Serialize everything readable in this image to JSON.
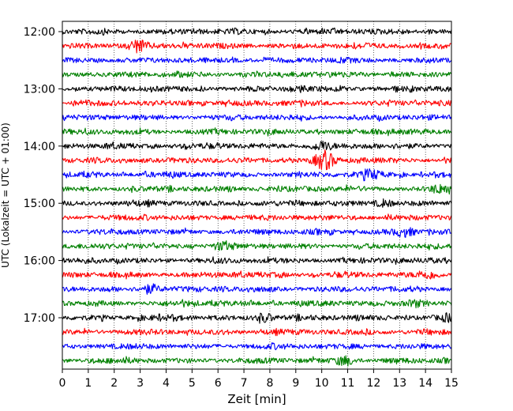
{
  "chart_data": {
    "type": "line",
    "title": "",
    "xlabel": "Zeit  [min]",
    "ylabel": "UTC (Lokalzeit = UTC + 01:00)",
    "xlim": [
      0,
      15
    ],
    "x_ticks": [
      0,
      1,
      2,
      3,
      4,
      5,
      6,
      7,
      8,
      9,
      10,
      11,
      12,
      13,
      14,
      15
    ],
    "y_ticks": [
      "12:00",
      "13:00",
      "14:00",
      "15:00",
      "16:00",
      "17:00"
    ],
    "grid": "vertical dotted",
    "trace_interval_min": 15,
    "colors": [
      "#000000",
      "#ff0000",
      "#0000ff",
      "#008000"
    ],
    "traces": [
      {
        "start": "12:00",
        "color": "#000000",
        "events": []
      },
      {
        "start": "12:15",
        "color": "#ff0000",
        "events": [
          {
            "t": 2.9,
            "amp": 2.2
          }
        ]
      },
      {
        "start": "12:30",
        "color": "#0000ff",
        "events": []
      },
      {
        "start": "12:45",
        "color": "#008000",
        "events": []
      },
      {
        "start": "13:00",
        "color": "#000000",
        "events": []
      },
      {
        "start": "13:15",
        "color": "#ff0000",
        "events": []
      },
      {
        "start": "13:30",
        "color": "#0000ff",
        "events": []
      },
      {
        "start": "13:45",
        "color": "#008000",
        "events": []
      },
      {
        "start": "14:00",
        "color": "#000000",
        "events": [
          {
            "t": 10.0,
            "amp": 1.5
          }
        ]
      },
      {
        "start": "14:15",
        "color": "#ff0000",
        "events": [
          {
            "t": 10.1,
            "amp": 3.2
          }
        ]
      },
      {
        "start": "14:30",
        "color": "#0000ff",
        "events": [
          {
            "t": 11.9,
            "amp": 1.3
          }
        ]
      },
      {
        "start": "14:45",
        "color": "#008000",
        "events": [
          {
            "t": 14.6,
            "amp": 1.4
          }
        ]
      },
      {
        "start": "15:00",
        "color": "#000000",
        "events": [
          {
            "t": 12.4,
            "amp": 1.2
          }
        ]
      },
      {
        "start": "15:15",
        "color": "#ff0000",
        "events": []
      },
      {
        "start": "15:30",
        "color": "#0000ff",
        "events": [
          {
            "t": 13.2,
            "amp": 1.2
          }
        ]
      },
      {
        "start": "15:45",
        "color": "#008000",
        "events": [
          {
            "t": 6.2,
            "amp": 1.3
          }
        ]
      },
      {
        "start": "16:00",
        "color": "#000000",
        "events": []
      },
      {
        "start": "16:15",
        "color": "#ff0000",
        "events": [
          {
            "t": 14.1,
            "amp": 1.1
          }
        ]
      },
      {
        "start": "16:30",
        "color": "#0000ff",
        "events": [
          {
            "t": 3.4,
            "amp": 1.6
          }
        ]
      },
      {
        "start": "16:45",
        "color": "#008000",
        "events": [
          {
            "t": 13.6,
            "amp": 1.2
          }
        ]
      },
      {
        "start": "17:00",
        "color": "#000000",
        "events": [
          {
            "t": 7.8,
            "amp": 1.4
          },
          {
            "t": 15.0,
            "amp": 1.3
          }
        ]
      },
      {
        "start": "17:15",
        "color": "#ff0000",
        "events": []
      },
      {
        "start": "17:30",
        "color": "#0000ff",
        "events": []
      },
      {
        "start": "17:45",
        "color": "#008000",
        "events": [
          {
            "t": 10.9,
            "amp": 1.6
          }
        ]
      }
    ]
  }
}
